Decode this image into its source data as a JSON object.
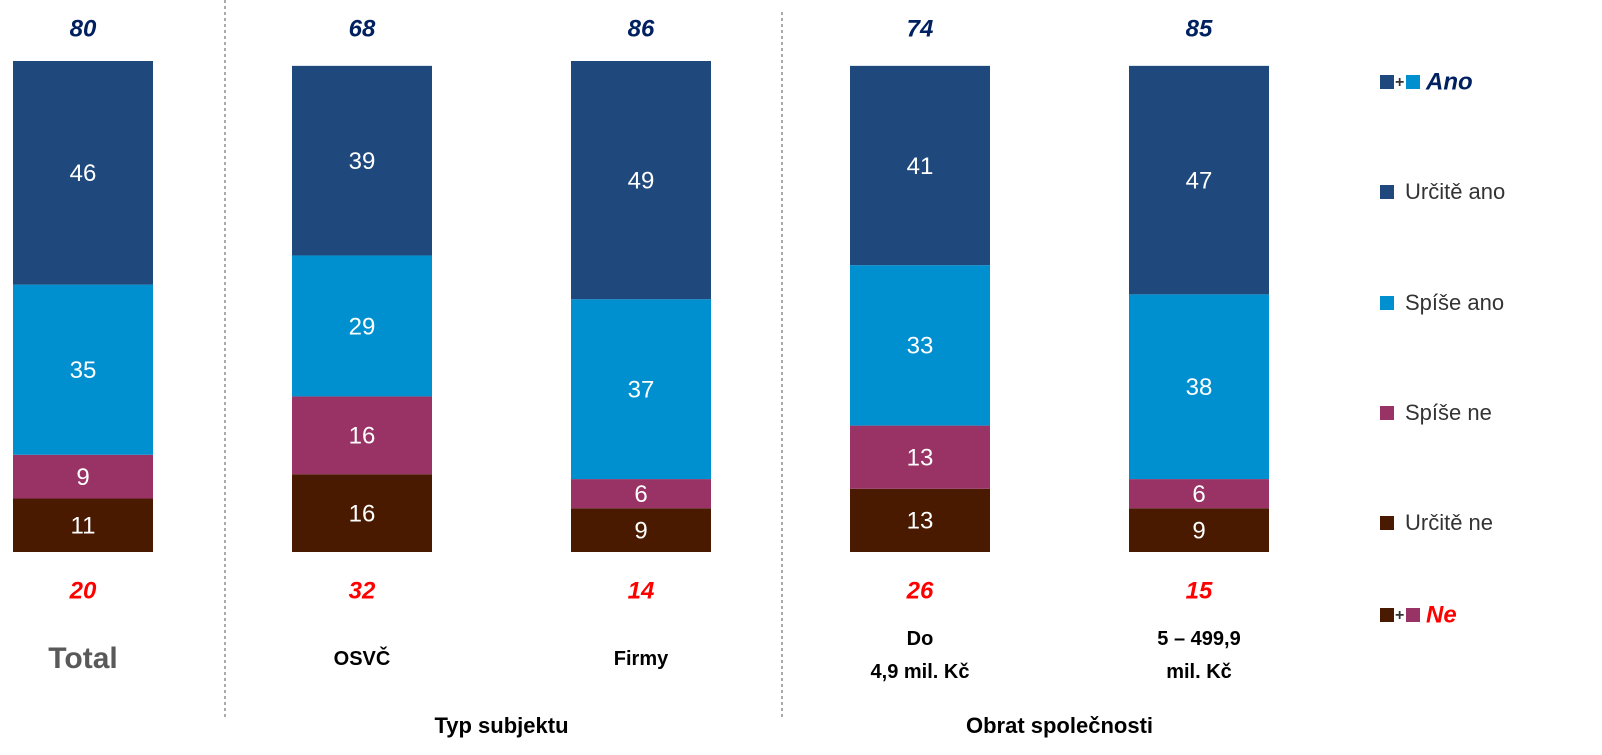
{
  "chart_data": {
    "type": "stacked_bar",
    "categories": [
      "Total",
      "OSVČ",
      "Firmy",
      "Do\n4,9 mil. Kč",
      "5 – 499,9\nmil. Kč"
    ],
    "groups": [
      {
        "label": "Typ subjektu",
        "from": 1,
        "to": 2
      },
      {
        "label": "Obrat společnosti",
        "from": 3,
        "to": 4
      }
    ],
    "series": [
      {
        "name": "Určitě ne",
        "color": "#4a1a00",
        "values": [
          11,
          16,
          9,
          13,
          9
        ]
      },
      {
        "name": "Spíše ne",
        "color": "#993366",
        "values": [
          9,
          16,
          6,
          13,
          6
        ]
      },
      {
        "name": "Spíše ano",
        "color": "#0090d0",
        "values": [
          35,
          29,
          37,
          33,
          38
        ]
      },
      {
        "name": "Určitě ano",
        "color": "#1f497d",
        "values": [
          46,
          39,
          49,
          41,
          47
        ]
      }
    ],
    "ano_label": "Ano",
    "ano_color": "#002060",
    "ano_totals": [
      80,
      68,
      86,
      74,
      85
    ],
    "ne_label": "Ne",
    "ne_color": "#ff0000",
    "ne_totals": [
      20,
      32,
      14,
      26,
      15
    ],
    "combo_sign": "+",
    "ylim": [
      0,
      101
    ]
  }
}
